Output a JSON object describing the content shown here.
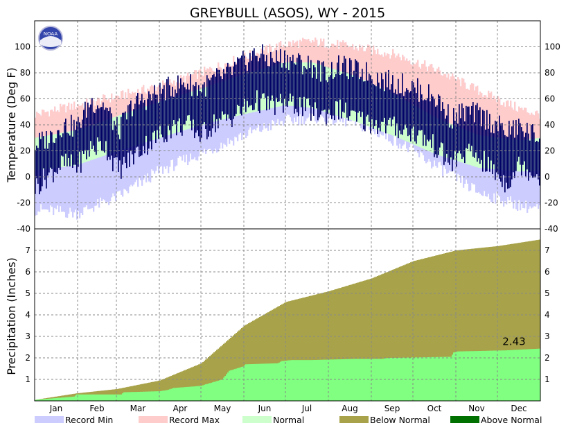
{
  "chart_data": {
    "title": "GREYBULL (ASOS), WY - 2015",
    "logo_text": "NOAA",
    "months": [
      "Jan",
      "Feb",
      "Mar",
      "Apr",
      "May",
      "Jun",
      "Jul",
      "Aug",
      "Sep",
      "Oct",
      "Nov",
      "Dec"
    ],
    "temperature": {
      "type": "bar",
      "ylabel": "Temperature (Deg F)",
      "ylim": [
        -40,
        120
      ],
      "yticks": [
        -40,
        -20,
        0,
        20,
        40,
        60,
        80,
        100
      ],
      "grid": true,
      "record_max_anchors": {
        "day": [
          0,
          30,
          60,
          90,
          120,
          150,
          180,
          200,
          230,
          260,
          290,
          320,
          350,
          364
        ],
        "value": [
          48,
          55,
          62,
          70,
          80,
          92,
          102,
          104,
          100,
          94,
          82,
          66,
          52,
          48
        ]
      },
      "record_min_anchors": {
        "day": [
          0,
          30,
          60,
          90,
          120,
          150,
          180,
          200,
          230,
          260,
          290,
          320,
          350,
          364
        ],
        "value": [
          -25,
          -28,
          -15,
          5,
          18,
          32,
          43,
          46,
          42,
          28,
          8,
          -12,
          -22,
          -25
        ]
      },
      "normal_high_anchors": {
        "day": [
          0,
          30,
          60,
          90,
          120,
          150,
          180,
          200,
          230,
          260,
          290,
          320,
          350,
          364
        ],
        "value": [
          30,
          36,
          47,
          58,
          68,
          79,
          88,
          88,
          78,
          63,
          45,
          32,
          28,
          30
        ]
      },
      "normal_low_anchors": {
        "day": [
          0,
          30,
          60,
          90,
          120,
          150,
          180,
          200,
          230,
          260,
          290,
          320,
          350,
          364
        ],
        "value": [
          5,
          9,
          20,
          30,
          40,
          48,
          55,
          53,
          43,
          31,
          17,
          7,
          4,
          5
        ]
      },
      "observed_high_anchors": {
        "day": [
          0,
          10,
          20,
          30,
          40,
          50,
          60,
          70,
          80,
          90,
          100,
          110,
          120,
          130,
          140,
          150,
          160,
          170,
          180,
          190,
          200,
          210,
          220,
          230,
          240,
          250,
          260,
          270,
          280,
          290,
          300,
          310,
          320,
          330,
          340,
          350,
          364
        ],
        "value": [
          25,
          30,
          40,
          38,
          58,
          55,
          35,
          55,
          60,
          65,
          70,
          72,
          68,
          75,
          80,
          88,
          95,
          90,
          92,
          88,
          85,
          80,
          85,
          82,
          80,
          75,
          72,
          70,
          65,
          60,
          45,
          50,
          48,
          42,
          35,
          38,
          30
        ]
      },
      "observed_low_anchors": {
        "day": [
          0,
          10,
          20,
          30,
          40,
          50,
          60,
          70,
          80,
          90,
          100,
          110,
          120,
          130,
          140,
          150,
          160,
          170,
          180,
          190,
          200,
          210,
          220,
          230,
          240,
          250,
          260,
          270,
          280,
          290,
          300,
          310,
          320,
          330,
          340,
          350,
          364
        ],
        "value": [
          -8,
          2,
          10,
          8,
          22,
          25,
          5,
          15,
          25,
          32,
          38,
          40,
          32,
          42,
          45,
          52,
          58,
          55,
          56,
          55,
          50,
          48,
          52,
          45,
          42,
          40,
          38,
          35,
          30,
          22,
          10,
          18,
          15,
          5,
          -5,
          10,
          0
        ]
      },
      "series": [
        {
          "name": "Record Min",
          "color": "#ccccff"
        },
        {
          "name": "Record Max",
          "color": "#ffcccc"
        },
        {
          "name": "Normal",
          "color": "#ccffcc"
        },
        {
          "name": "Observed",
          "color": "#000066"
        }
      ]
    },
    "precipitation": {
      "type": "area",
      "ylabel": "Precipitation (Inches)",
      "ylim": [
        0,
        8
      ],
      "yticks": [
        1,
        2,
        3,
        4,
        5,
        6,
        7
      ],
      "grid": true,
      "normal_cumulative": {
        "day": [
          0,
          30,
          59,
          90,
          120,
          151,
          181,
          212,
          243,
          273,
          304,
          334,
          364
        ],
        "value": [
          0.05,
          0.35,
          0.55,
          0.95,
          1.75,
          3.5,
          4.6,
          5.1,
          5.7,
          6.5,
          7.0,
          7.2,
          7.5
        ]
      },
      "observed_cumulative": {
        "day": [
          0,
          28,
          30,
          62,
          64,
          90,
          95,
          100,
          120,
          122,
          130,
          135,
          140,
          150,
          152,
          175,
          178,
          185,
          200,
          230,
          250,
          255,
          300,
          302,
          305,
          340,
          364
        ],
        "value": [
          0.05,
          0.2,
          0.3,
          0.3,
          0.4,
          0.45,
          0.5,
          0.6,
          0.7,
          0.75,
          0.9,
          1.0,
          1.4,
          1.6,
          1.7,
          1.75,
          1.85,
          1.9,
          1.9,
          1.95,
          1.95,
          2.0,
          2.05,
          2.25,
          2.3,
          2.35,
          2.43
        ]
      },
      "annotation": "2.43",
      "series": [
        {
          "name": "Below Normal",
          "color": "#a8a34a"
        },
        {
          "name": "Above Normal",
          "color": "#007000"
        },
        {
          "name": "Observed",
          "color": "#80ff80"
        }
      ]
    },
    "legend": [
      {
        "label": "Record Min",
        "color": "#ccccff"
      },
      {
        "label": "Record Max",
        "color": "#ffcccc"
      },
      {
        "label": "Normal",
        "color": "#ccffcc"
      },
      {
        "label": "Below Normal",
        "color": "#a8a34a"
      },
      {
        "label": "Above Normal",
        "color": "#007000"
      }
    ]
  }
}
